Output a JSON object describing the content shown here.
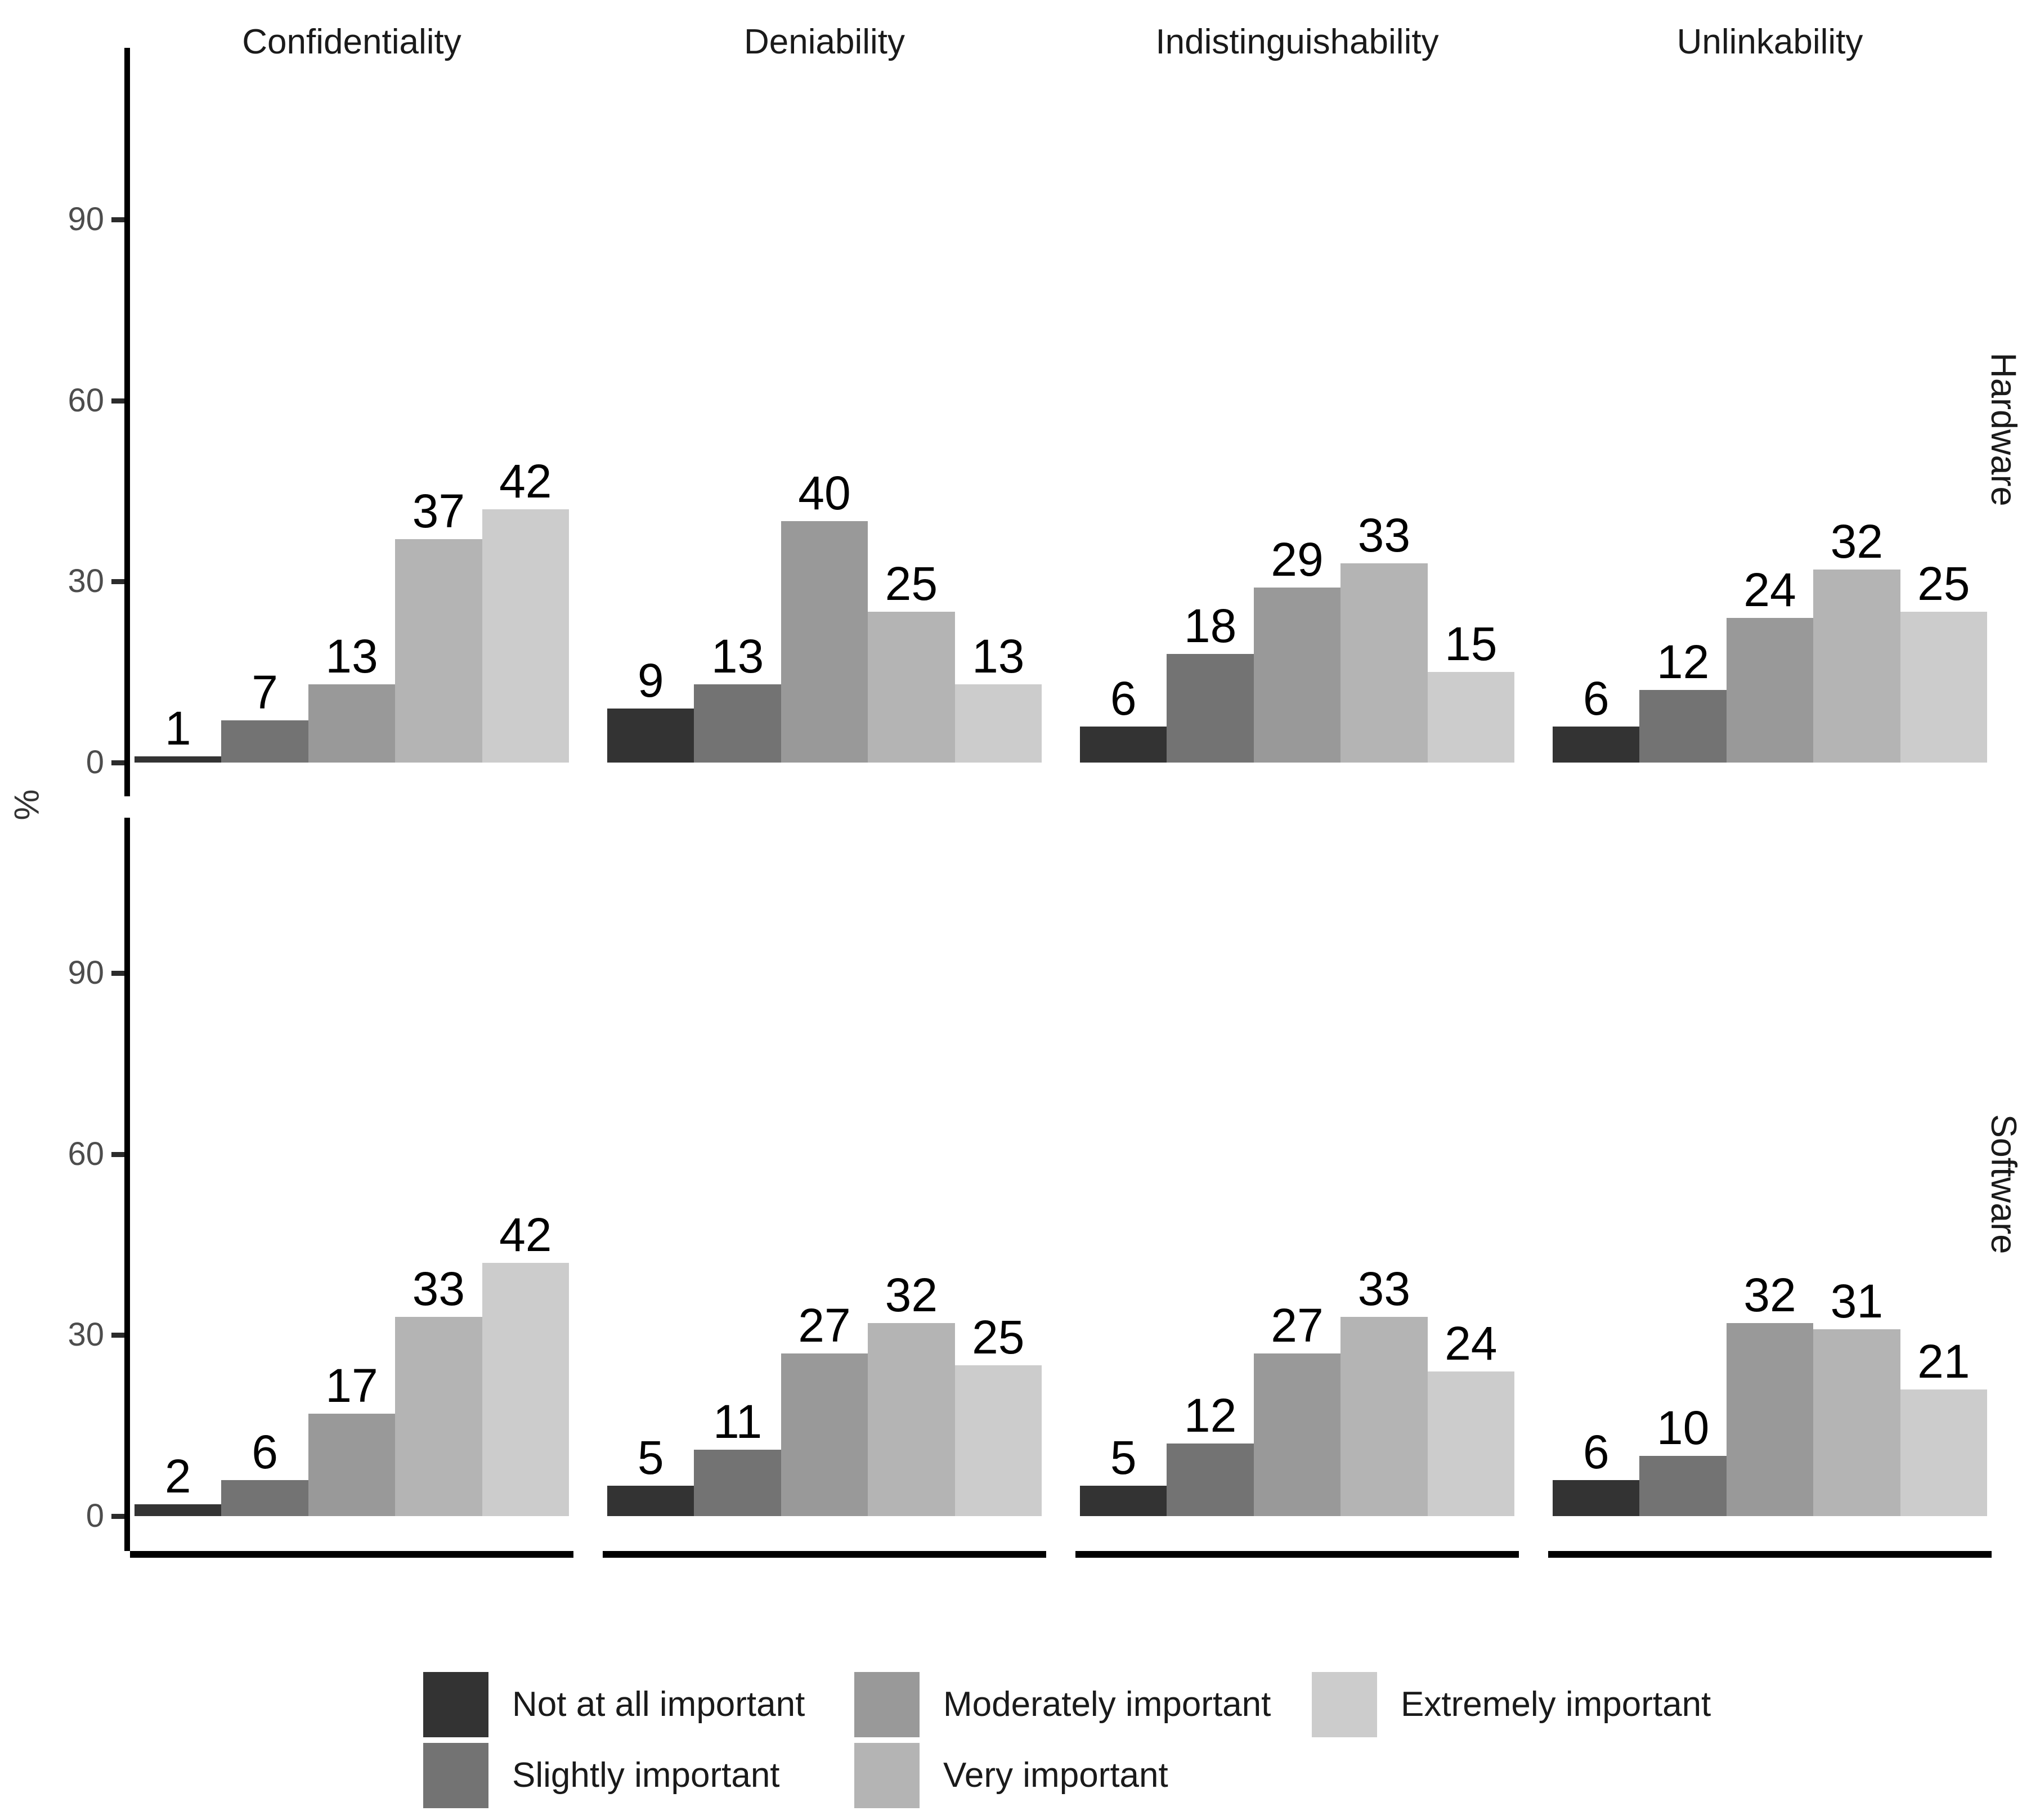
{
  "chart_data": {
    "type": "bar",
    "title": "",
    "ylabel": "%",
    "y_ticks": [
      0,
      30,
      60,
      90
    ],
    "ylim": [
      0,
      112
    ],
    "grid": false,
    "legend_position": "bottom",
    "value_labels": true,
    "facet_columns": [
      "Confidentiality",
      "Deniability",
      "Indistinguishability",
      "Unlinkability"
    ],
    "facet_rows": [
      "Hardware",
      "Software"
    ],
    "categories": [
      "Not at all important",
      "Slightly important",
      "Moderately important",
      "Very important",
      "Extremely important"
    ],
    "colors": [
      "#333333",
      "#737373",
      "#999999",
      "#b4b4b4",
      "#cccccc"
    ],
    "series": [
      {
        "facet_row": "Hardware",
        "panels": [
          {
            "facet_column": "Confidentiality",
            "values": [
              1,
              7,
              13,
              37,
              42
            ]
          },
          {
            "facet_column": "Deniability",
            "values": [
              9,
              13,
              40,
              25,
              13
            ]
          },
          {
            "facet_column": "Indistinguishability",
            "values": [
              6,
              18,
              29,
              33,
              15
            ]
          },
          {
            "facet_column": "Unlinkability",
            "values": [
              6,
              12,
              24,
              32,
              25
            ]
          }
        ]
      },
      {
        "facet_row": "Software",
        "panels": [
          {
            "facet_column": "Confidentiality",
            "values": [
              2,
              6,
              17,
              33,
              42
            ]
          },
          {
            "facet_column": "Deniability",
            "values": [
              5,
              11,
              27,
              32,
              25
            ]
          },
          {
            "facet_column": "Indistinguishability",
            "values": [
              5,
              12,
              27,
              33,
              24
            ]
          },
          {
            "facet_column": "Unlinkability",
            "values": [
              6,
              10,
              32,
              31,
              21
            ]
          }
        ]
      }
    ]
  },
  "legend": {
    "items": [
      {
        "label": "Not at all important",
        "color": "#333333"
      },
      {
        "label": "Slightly important",
        "color": "#737373"
      },
      {
        "label": "Moderately important",
        "color": "#999999"
      },
      {
        "label": "Very important",
        "color": "#b4b4b4"
      },
      {
        "label": "Extremely important",
        "color": "#cccccc"
      }
    ]
  },
  "colors": {
    "background": "#ffffff",
    "axis_line": "#000000",
    "tick_label": "#4d4d4d",
    "text": "#1a1a1a"
  }
}
